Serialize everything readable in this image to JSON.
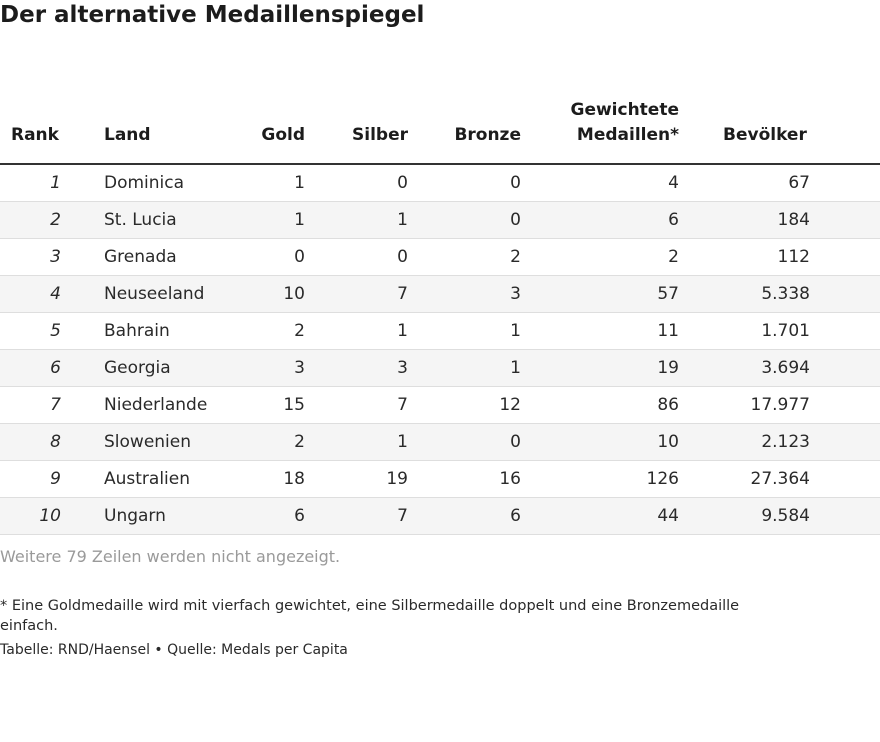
{
  "title": "Der alternative Medaillenspiegel",
  "table": {
    "headers": {
      "rank": "Rank",
      "land": "Land",
      "gold": "Gold",
      "silber": "Silber",
      "bronze": "Bronze",
      "gewichtete_line1": "Gewichtete",
      "gewichtete_line2": "Medaillen*",
      "bevoelkerung": "Bevölker"
    },
    "rows": [
      {
        "rank": "1",
        "land": "Dominica",
        "gold": "1",
        "silber": "0",
        "bronze": "0",
        "gewichtete": "4",
        "bevoelkerung": "67"
      },
      {
        "rank": "2",
        "land": "St. Lucia",
        "gold": "1",
        "silber": "1",
        "bronze": "0",
        "gewichtete": "6",
        "bevoelkerung": "184"
      },
      {
        "rank": "3",
        "land": "Grenada",
        "gold": "0",
        "silber": "0",
        "bronze": "2",
        "gewichtete": "2",
        "bevoelkerung": "112"
      },
      {
        "rank": "4",
        "land": "Neuseeland",
        "gold": "10",
        "silber": "7",
        "bronze": "3",
        "gewichtete": "57",
        "bevoelkerung": "5.338"
      },
      {
        "rank": "5",
        "land": "Bahrain",
        "gold": "2",
        "silber": "1",
        "bronze": "1",
        "gewichtete": "11",
        "bevoelkerung": "1.701"
      },
      {
        "rank": "6",
        "land": "Georgia",
        "gold": "3",
        "silber": "3",
        "bronze": "1",
        "gewichtete": "19",
        "bevoelkerung": "3.694"
      },
      {
        "rank": "7",
        "land": "Niederlande",
        "gold": "15",
        "silber": "7",
        "bronze": "12",
        "gewichtete": "86",
        "bevoelkerung": "17.977"
      },
      {
        "rank": "8",
        "land": "Slowenien",
        "gold": "2",
        "silber": "1",
        "bronze": "0",
        "gewichtete": "10",
        "bevoelkerung": "2.123"
      },
      {
        "rank": "9",
        "land": "Australien",
        "gold": "18",
        "silber": "19",
        "bronze": "16",
        "gewichtete": "126",
        "bevoelkerung": "27.364"
      },
      {
        "rank": "10",
        "land": "Ungarn",
        "gold": "6",
        "silber": "7",
        "bronze": "6",
        "gewichtete": "44",
        "bevoelkerung": "9.584"
      }
    ]
  },
  "more_rows_note": "Weitere 79 Zeilen werden nicht angezeigt.",
  "footnote": "* Eine Goldmedaille wird mit vierfach gewichtet, eine Silbermedaille doppelt und eine Bronzemedaille einfach.",
  "source": "Tabelle: RND/Haensel • Quelle: Medals per Capita",
  "colors": {
    "stripe": "#f5f5f5",
    "header_rule": "#333333",
    "muted_text": "#9a9a9a"
  }
}
